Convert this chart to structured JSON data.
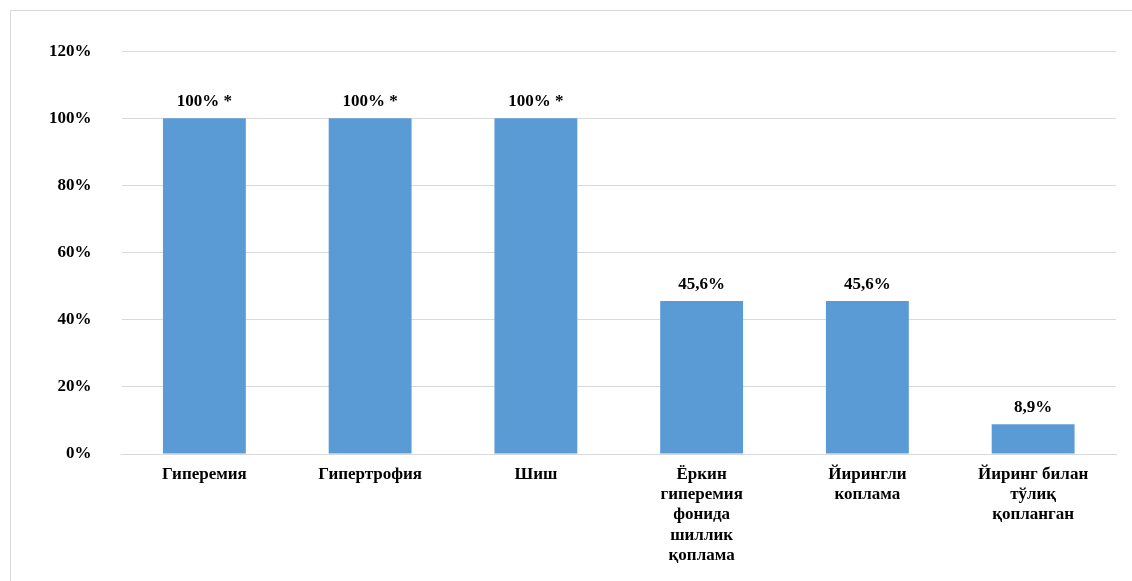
{
  "chart_data": {
    "type": "bar",
    "categories": [
      "Гиперемия",
      "Гипертрофия",
      "Шиш",
      "Ёркин гиперемия фонида шиллик қоплама",
      "Йирингли коплама",
      "Йиринг билан тўлиқ қопланган"
    ],
    "values": [
      100,
      100,
      100,
      45.6,
      45.6,
      8.9
    ],
    "value_labels": [
      "100% *",
      "100% *",
      "100% *",
      "45,6%",
      "45,6%",
      "8,9%"
    ],
    "color": "#5b9bd5",
    "ylim": [
      0,
      120
    ],
    "yticks": [
      {
        "value": 0,
        "label": "0%"
      },
      {
        "value": 20,
        "label": "20%"
      },
      {
        "value": 40,
        "label": "40%"
      },
      {
        "value": 60,
        "label": "60%"
      },
      {
        "value": 80,
        "label": "80%"
      },
      {
        "value": 100,
        "label": "100%"
      },
      {
        "value": 120,
        "label": "120%"
      }
    ],
    "grid": "y"
  }
}
